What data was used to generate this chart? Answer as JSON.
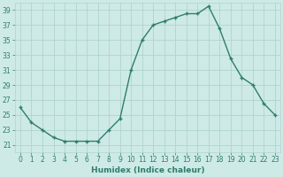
{
  "x": [
    0,
    1,
    2,
    3,
    4,
    5,
    6,
    7,
    8,
    9,
    10,
    11,
    12,
    13,
    14,
    15,
    16,
    17,
    18,
    19,
    20,
    21,
    22,
    23
  ],
  "y": [
    26,
    24,
    23,
    22,
    21.5,
    21.5,
    21.5,
    21.5,
    23,
    24.5,
    31,
    35,
    37,
    37.5,
    38,
    38.5,
    38.5,
    39.5,
    36.5,
    32.5,
    30,
    29,
    26.5,
    25
  ],
  "line_color": "#2e7d6e",
  "marker": "+",
  "bg_color": "#ceeae6",
  "grid_color": "#afd4cf",
  "xlabel": "Humidex (Indice chaleur)",
  "ylim": [
    20,
    40
  ],
  "yticks": [
    21,
    23,
    25,
    27,
    29,
    31,
    33,
    35,
    37,
    39
  ],
  "xticks": [
    0,
    1,
    2,
    3,
    4,
    5,
    6,
    7,
    8,
    9,
    10,
    11,
    12,
    13,
    14,
    15,
    16,
    17,
    18,
    19,
    20,
    21,
    22,
    23
  ],
  "font_color": "#2e7d6e",
  "tick_fontsize": 5.5,
  "xlabel_fontsize": 6.5,
  "linewidth": 1.0,
  "markersize": 3.5,
  "markeredgewidth": 1.0
}
